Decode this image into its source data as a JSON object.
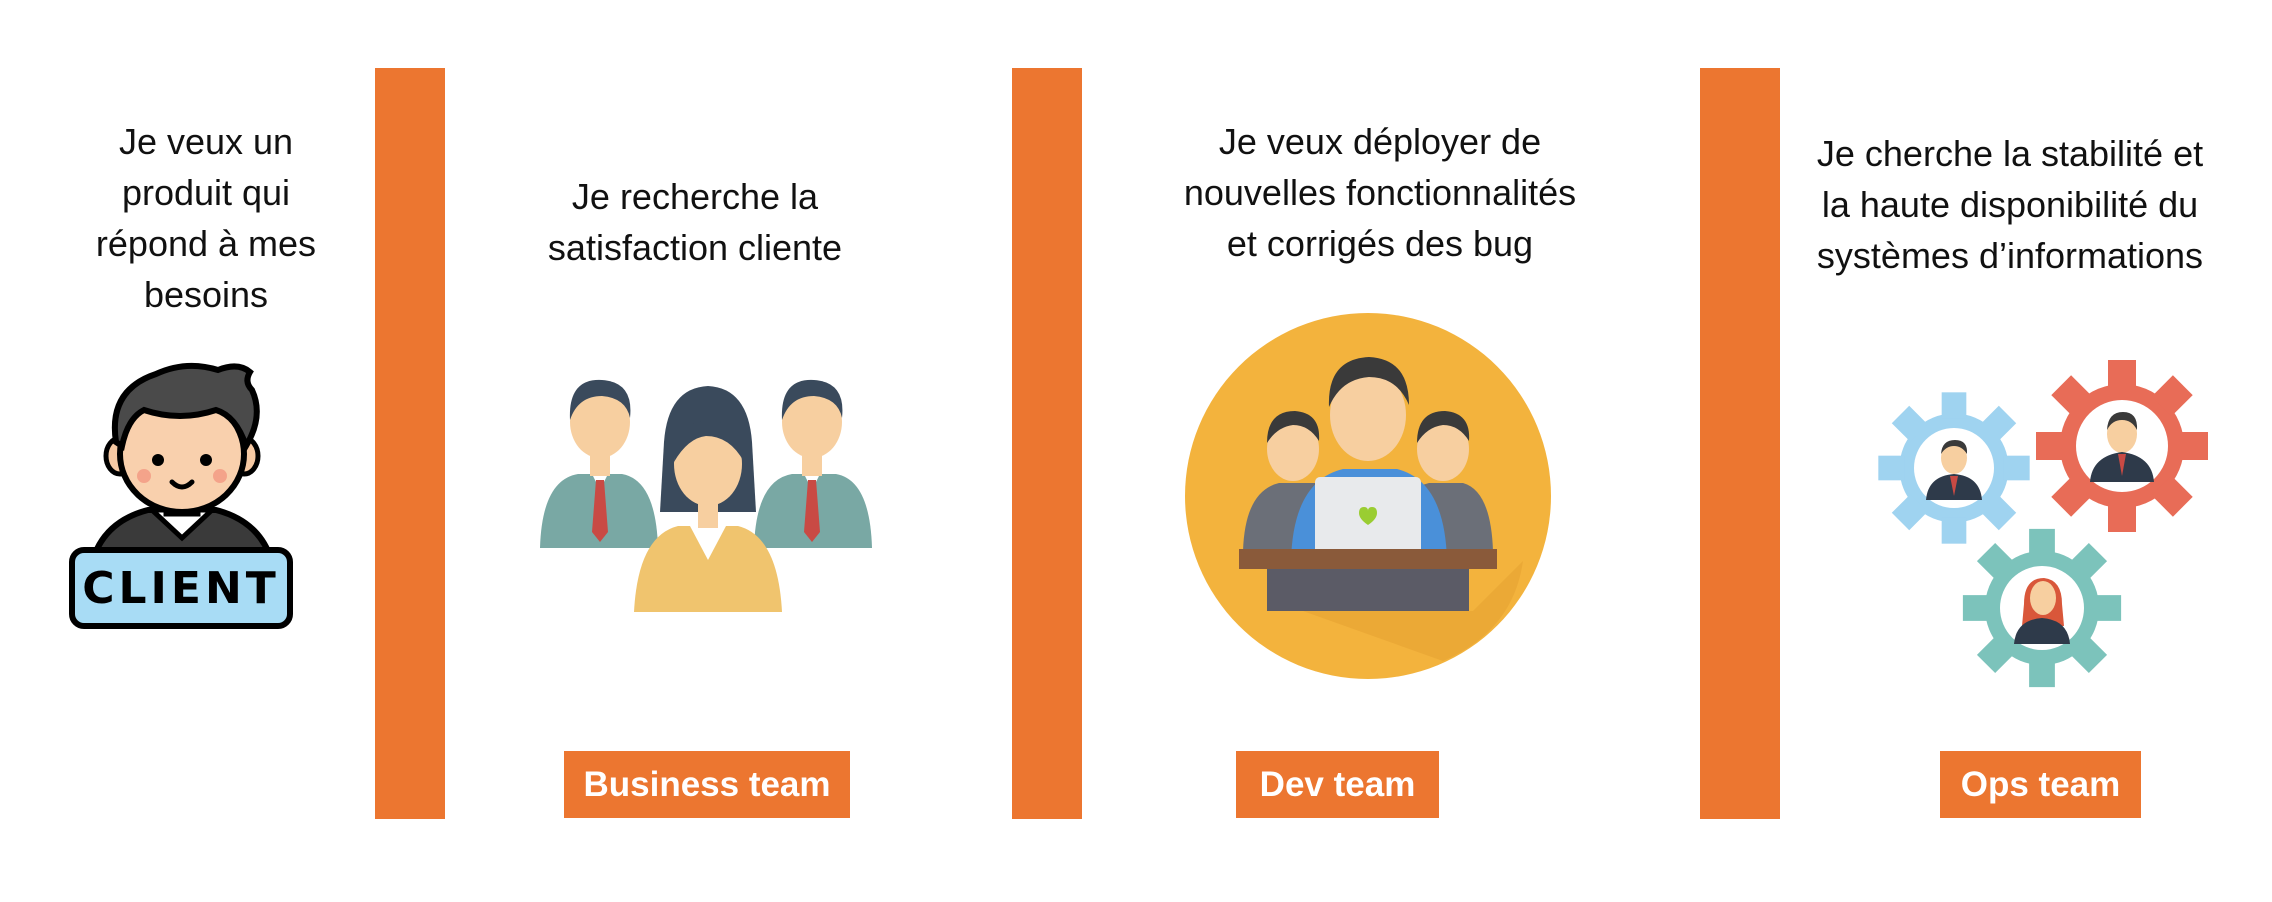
{
  "colors": {
    "accent": "#ec7630",
    "label_text": "#ffffff",
    "body_text": "#111111"
  },
  "client": {
    "quote": "Je veux un\nproduit qui\nrépond à mes\nbesoins",
    "badge": "CLIENT",
    "icon": "client-avatar-icon"
  },
  "business": {
    "quote": "Je recherche la\nsatisfaction cliente",
    "label": "Business team",
    "icon": "business-people-icon"
  },
  "dev": {
    "quote": "Je veux déployer de\nnouvelles fonctionnalités\net corrigés des bug",
    "label": "Dev team",
    "icon": "developers-laptop-icon"
  },
  "ops": {
    "quote": "Je cherche la stabilité et\nla haute disponibilité du\nsystèmes d’informations",
    "label": "Ops team",
    "icon": "ops-gears-people-icon"
  }
}
